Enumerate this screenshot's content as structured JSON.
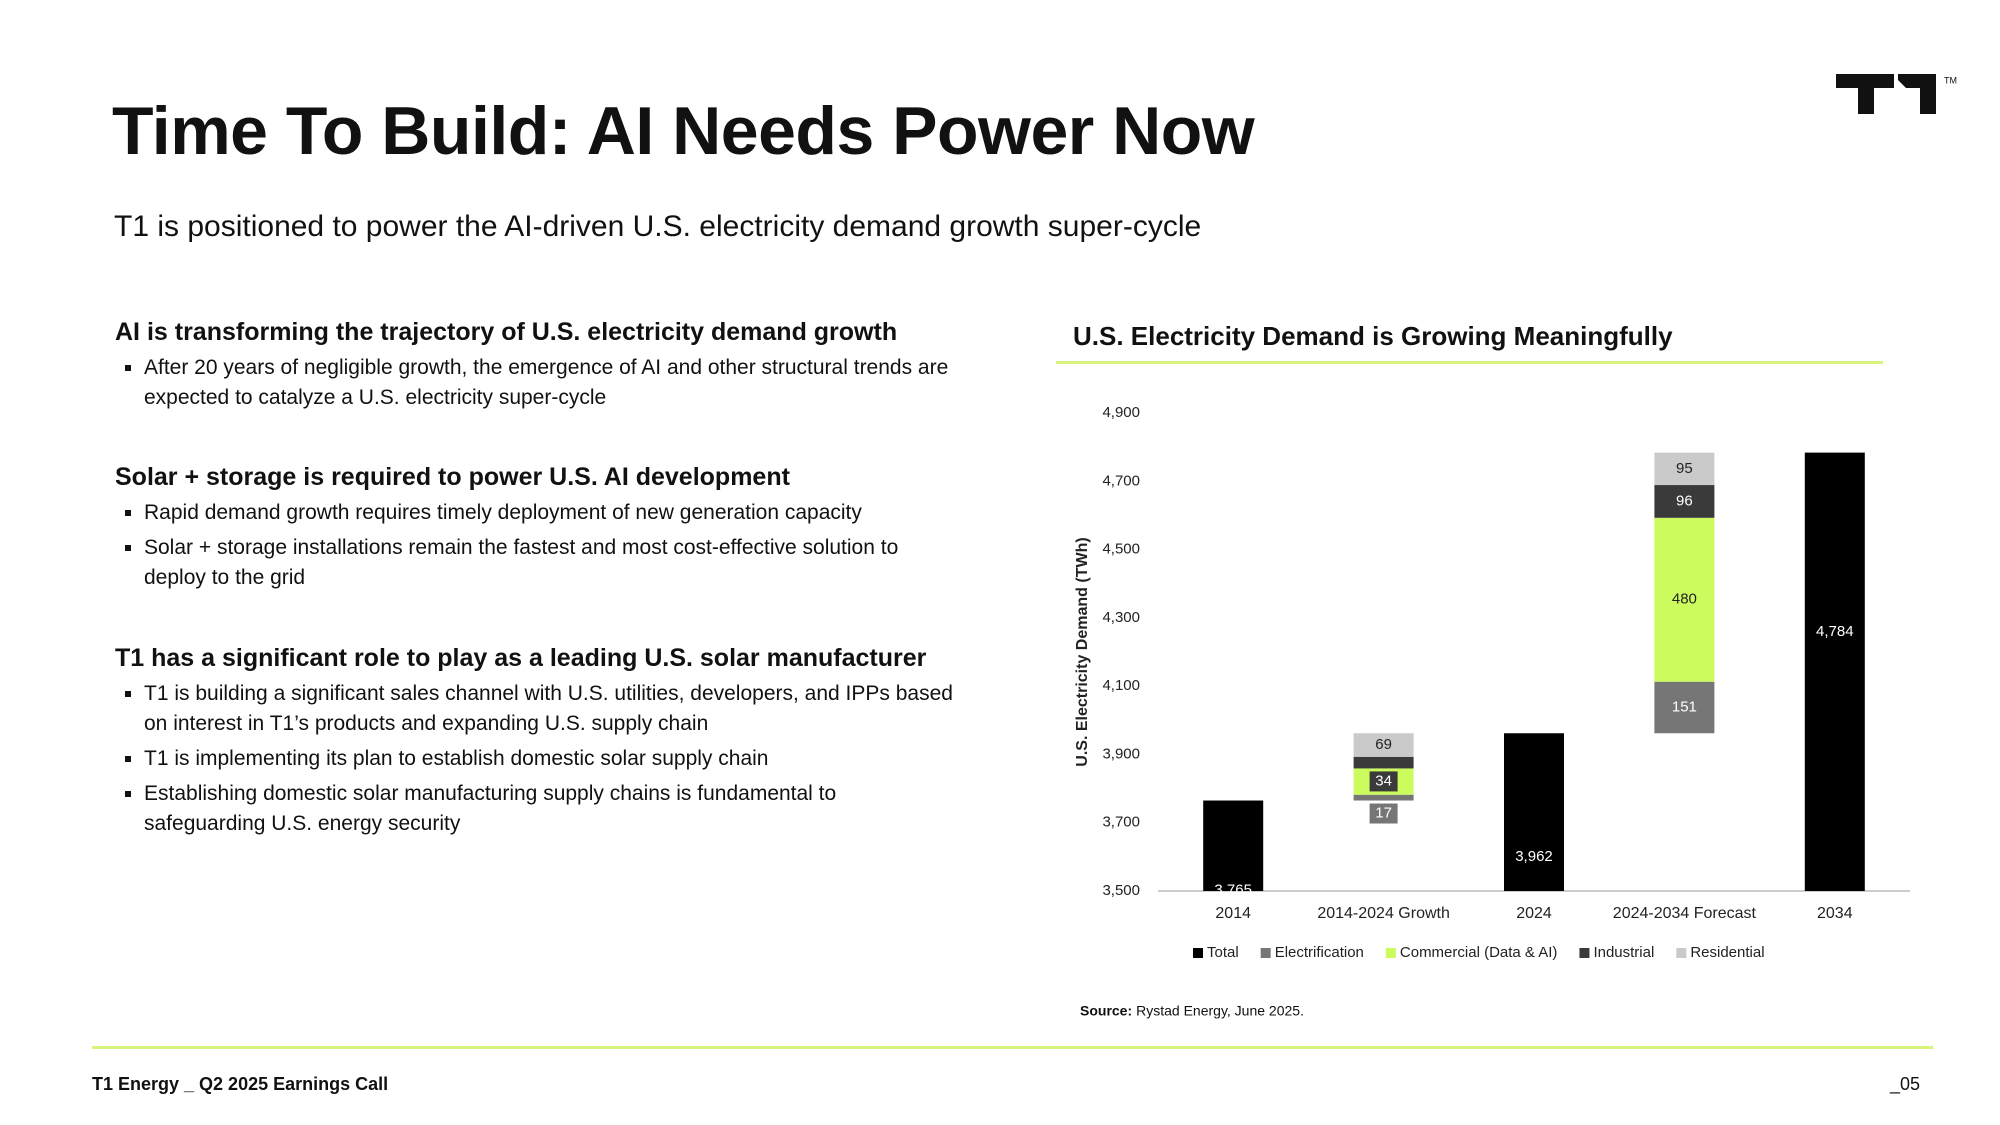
{
  "header": {
    "title": "Time To Build: AI Needs Power Now",
    "subtitle": "T1 is positioned to power the AI-driven U.S. electricity demand growth super-cycle",
    "logo_mark": "TM"
  },
  "sections": [
    {
      "heading": "AI is transforming the trajectory of U.S. electricity demand growth",
      "bullets": [
        "After 20 years of negligible growth, the emergence of AI and other structural trends are expected to catalyze a U.S. electricity super-cycle"
      ]
    },
    {
      "heading": "Solar + storage is required to power U.S. AI development",
      "bullets": [
        "Rapid demand growth requires timely deployment of new generation capacity",
        "Solar + storage installations remain the fastest and most cost-effective solution to deploy to the grid"
      ]
    },
    {
      "heading": "T1 has a significant role to play as a leading U.S. solar manufacturer",
      "bullets": [
        "T1 is building a significant sales channel with U.S. utilities, developers, and IPPs based on interest in T1’s products and expanding U.S. supply chain",
        "T1 is implementing its plan to establish domestic solar supply chain",
        "Establishing domestic solar manufacturing supply chains is fundamental to safeguarding U.S. energy security"
      ]
    }
  ],
  "chart_data": {
    "type": "waterfall",
    "title": "U.S. Electricity Demand is Growing Meaningfully",
    "y_label": "U.S. Electricity Demand (TWh)",
    "categories": [
      "2014",
      "2014-2024 Growth",
      "2024",
      "2024-2034 Forecast",
      "2034"
    ],
    "series": [
      {
        "name": "Total",
        "color": "#000000",
        "values": [
          3765,
          null,
          3962,
          null,
          4784
        ],
        "value_labels": [
          "3,765",
          null,
          "3,962",
          null,
          "4,784"
        ]
      },
      {
        "name": "Electrification",
        "color": "#767676",
        "values": [
          null,
          17,
          null,
          151,
          null
        ]
      },
      {
        "name": "Commercial (Data & AI)",
        "color": "#ccfb5d",
        "values": [
          null,
          77,
          null,
          480,
          null
        ]
      },
      {
        "name": "Industrial",
        "color": "#3a3a3a",
        "values": [
          null,
          34,
          null,
          96,
          null
        ]
      },
      {
        "name": "Residential",
        "color": "#cacaca",
        "values": [
          null,
          69,
          null,
          95,
          null
        ]
      }
    ],
    "ylim": [
      3500,
      4900
    ],
    "yticks": [
      {
        "value": 3500,
        "label": "3,500"
      },
      {
        "value": 3700,
        "label": "3,700"
      },
      {
        "value": 3900,
        "label": "3,900"
      },
      {
        "value": 4100,
        "label": "4,100"
      },
      {
        "value": 4300,
        "label": "4,300"
      },
      {
        "value": 4500,
        "label": "4,500"
      },
      {
        "value": 4700,
        "label": "4,700"
      },
      {
        "value": 4900,
        "label": "4,900"
      }
    ],
    "source_label": "Source:",
    "source": "Rystad Energy, June 2025."
  },
  "footer": {
    "left": "T1 Energy _ Q2 2025 Earnings Call",
    "page": "_05"
  }
}
